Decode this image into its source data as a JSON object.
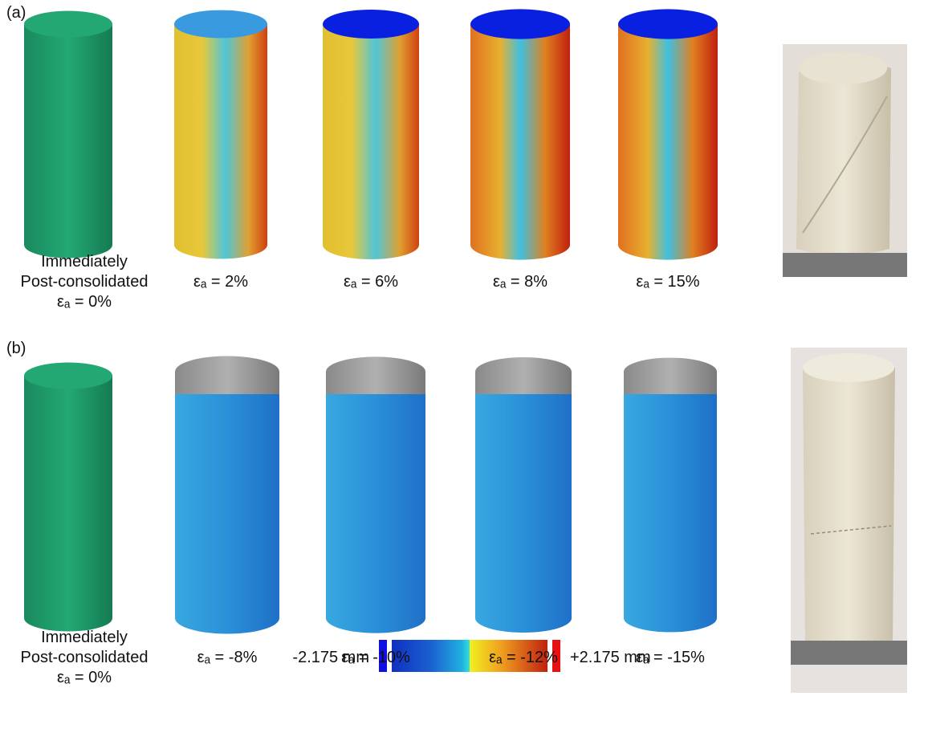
{
  "panels": [
    {
      "label": "(a)",
      "specimens": [
        {
          "caption": [
            "Immediately",
            "Post-consolidated",
            "εₐ = 0%"
          ]
        },
        {
          "caption": [
            "εₐ = 2%"
          ]
        },
        {
          "caption": [
            "εₐ = 6%"
          ]
        },
        {
          "caption": [
            "εₐ = 8%"
          ]
        },
        {
          "caption": [
            "εₐ = 15%"
          ]
        }
      ]
    },
    {
      "label": "(b)",
      "specimens": [
        {
          "caption": [
            "Immediately",
            "Post-consolidated",
            "εₐ = 0%"
          ]
        },
        {
          "caption": [
            "εₐ = -8%"
          ]
        },
        {
          "caption": [
            "εₐ = -10%"
          ]
        },
        {
          "caption": [
            "εₐ = -12%"
          ]
        },
        {
          "caption": [
            "εₐ = -15%"
          ]
        }
      ]
    }
  ],
  "colorbar": {
    "min_label": "-2.175 mm",
    "max_label": "+2.175 mm"
  }
}
